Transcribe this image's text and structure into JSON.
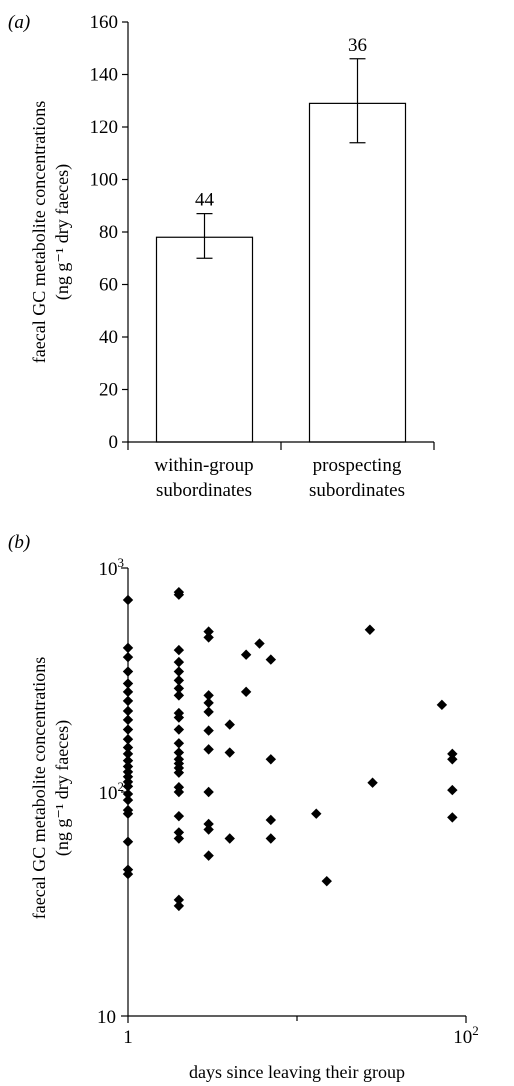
{
  "chart_data": [
    {
      "type": "bar",
      "panel_label": "(a)",
      "categories": [
        [
          "within-group",
          "subordinates"
        ],
        [
          "prospecting",
          "subordinates"
        ]
      ],
      "values": [
        78,
        129
      ],
      "error_low": [
        70,
        114
      ],
      "error_high": [
        87,
        146
      ],
      "data_labels": [
        "44",
        "36"
      ],
      "ylabel_line1": "faecal GC metabolite concentrations",
      "ylabel_line2": "(ng g⁻¹ dry faeces)",
      "ylim": [
        0,
        160
      ],
      "yticks": [
        "0",
        "20",
        "40",
        "60",
        "80",
        "100",
        "120",
        "140",
        "160"
      ],
      "bar_color": "#ffffff",
      "grid": false
    },
    {
      "type": "scatter",
      "panel_label": "(b)",
      "xscale": "log",
      "yscale": "log",
      "xlim": [
        1,
        100
      ],
      "ylim": [
        10,
        1000
      ],
      "xticks": [
        {
          "value": 1,
          "label": "1",
          "sup": ""
        },
        {
          "value": 100,
          "label": "10",
          "sup": "2"
        }
      ],
      "xminor": [
        10
      ],
      "yticks": [
        {
          "value": 10,
          "label": "10",
          "sup": ""
        },
        {
          "value": 100,
          "label": "10",
          "sup": "2"
        },
        {
          "value": 1000,
          "label": "10",
          "sup": "3"
        }
      ],
      "xlabel": "days since leaving their group",
      "ylabel_line1": "faecal GC metabolite concentrations",
      "ylabel_line2": "(ng g⁻¹ dry faeces)",
      "marker": "diamond",
      "marker_color": "#000000",
      "grid": false,
      "points": [
        {
          "x": 1,
          "y": 720
        },
        {
          "x": 1,
          "y": 440
        },
        {
          "x": 1,
          "y": 400
        },
        {
          "x": 1,
          "y": 345
        },
        {
          "x": 1,
          "y": 305
        },
        {
          "x": 1,
          "y": 280
        },
        {
          "x": 1,
          "y": 255
        },
        {
          "x": 1,
          "y": 230
        },
        {
          "x": 1,
          "y": 210
        },
        {
          "x": 1,
          "y": 190
        },
        {
          "x": 1,
          "y": 172
        },
        {
          "x": 1,
          "y": 158
        },
        {
          "x": 1,
          "y": 148
        },
        {
          "x": 1,
          "y": 138
        },
        {
          "x": 1,
          "y": 130
        },
        {
          "x": 1,
          "y": 123
        },
        {
          "x": 1,
          "y": 117
        },
        {
          "x": 1,
          "y": 111
        },
        {
          "x": 1,
          "y": 106
        },
        {
          "x": 1,
          "y": 98
        },
        {
          "x": 1,
          "y": 92
        },
        {
          "x": 1,
          "y": 83
        },
        {
          "x": 1,
          "y": 80
        },
        {
          "x": 1,
          "y": 60
        },
        {
          "x": 1,
          "y": 45
        },
        {
          "x": 1,
          "y": 43
        },
        {
          "x": 2,
          "y": 780
        },
        {
          "x": 2,
          "y": 760
        },
        {
          "x": 2,
          "y": 430
        },
        {
          "x": 2,
          "y": 380
        },
        {
          "x": 2,
          "y": 345
        },
        {
          "x": 2,
          "y": 315
        },
        {
          "x": 2,
          "y": 290
        },
        {
          "x": 2,
          "y": 270
        },
        {
          "x": 2,
          "y": 225
        },
        {
          "x": 2,
          "y": 215
        },
        {
          "x": 2,
          "y": 190
        },
        {
          "x": 2,
          "y": 165
        },
        {
          "x": 2,
          "y": 150
        },
        {
          "x": 2,
          "y": 140
        },
        {
          "x": 2,
          "y": 134
        },
        {
          "x": 2,
          "y": 128
        },
        {
          "x": 2,
          "y": 122
        },
        {
          "x": 2,
          "y": 105
        },
        {
          "x": 2,
          "y": 100
        },
        {
          "x": 2,
          "y": 78
        },
        {
          "x": 2,
          "y": 66
        },
        {
          "x": 2,
          "y": 62
        },
        {
          "x": 2,
          "y": 33
        },
        {
          "x": 2,
          "y": 31
        },
        {
          "x": 3,
          "y": 520
        },
        {
          "x": 3,
          "y": 490
        },
        {
          "x": 3,
          "y": 270
        },
        {
          "x": 3,
          "y": 250
        },
        {
          "x": 3,
          "y": 228
        },
        {
          "x": 3,
          "y": 188
        },
        {
          "x": 3,
          "y": 155
        },
        {
          "x": 3,
          "y": 100
        },
        {
          "x": 3,
          "y": 72
        },
        {
          "x": 3,
          "y": 68
        },
        {
          "x": 3,
          "y": 52
        },
        {
          "x": 4,
          "y": 200
        },
        {
          "x": 4,
          "y": 150
        },
        {
          "x": 4,
          "y": 62
        },
        {
          "x": 5,
          "y": 410
        },
        {
          "x": 5,
          "y": 280
        },
        {
          "x": 6,
          "y": 460
        },
        {
          "x": 7,
          "y": 390
        },
        {
          "x": 7,
          "y": 140
        },
        {
          "x": 7,
          "y": 75
        },
        {
          "x": 7,
          "y": 62
        },
        {
          "x": 13,
          "y": 80
        },
        {
          "x": 15,
          "y": 40
        },
        {
          "x": 27,
          "y": 530
        },
        {
          "x": 28,
          "y": 110
        },
        {
          "x": 72,
          "y": 245
        },
        {
          "x": 83,
          "y": 148
        },
        {
          "x": 83,
          "y": 140
        },
        {
          "x": 83,
          "y": 102
        },
        {
          "x": 83,
          "y": 77
        }
      ]
    }
  ]
}
